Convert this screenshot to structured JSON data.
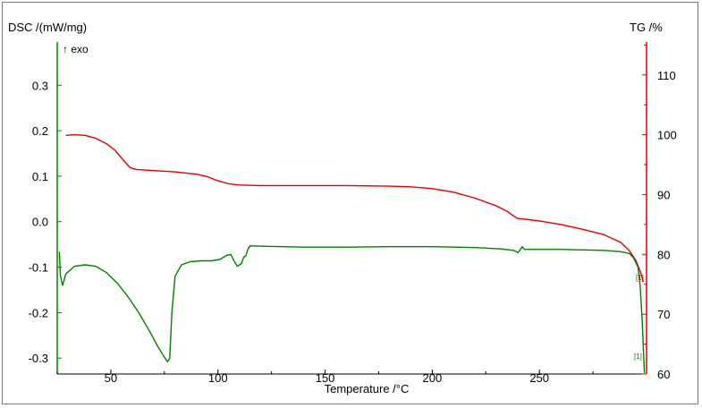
{
  "chart_data": {
    "type": "line",
    "xlabel": "Temperature /°C",
    "xlim": [
      25,
      300
    ],
    "xticks": [
      50,
      100,
      150,
      200,
      250
    ],
    "y_left": {
      "label": "DSC /(mW/mg)",
      "lim": [
        -0.335,
        0.395
      ],
      "ticks": [
        -0.3,
        -0.2,
        -0.1,
        0.0,
        0.1,
        0.2,
        0.3
      ],
      "tick_labels": [
        "-0.3",
        "-0.2",
        "-0.1",
        "0.0",
        "0.1",
        "0.2",
        "0.3"
      ],
      "color": "#008000"
    },
    "y_right": {
      "label": "TG /%",
      "lim": [
        60,
        115.5
      ],
      "ticks": [
        60,
        70,
        80,
        90,
        100,
        110
      ],
      "tick_labels": [
        "60",
        "70",
        "80",
        "90",
        "100",
        "110"
      ],
      "color": "#e00000"
    },
    "annotations": {
      "exo": "↑ exo",
      "marker_dsc": "[1]",
      "marker_tg": "[1]"
    },
    "series": [
      {
        "axis": "right",
        "color": "#e00000",
        "points": [
          [
            29,
            99.9
          ],
          [
            33,
            100
          ],
          [
            38,
            99.9
          ],
          [
            43,
            99.4
          ],
          [
            48,
            98.5
          ],
          [
            52,
            97.4
          ],
          [
            56,
            95.7
          ],
          [
            59,
            94.5
          ],
          [
            62,
            94.2
          ],
          [
            70,
            94.0
          ],
          [
            80,
            93.8
          ],
          [
            90,
            93.4
          ],
          [
            95,
            93.0
          ],
          [
            100,
            92.3
          ],
          [
            105,
            91.8
          ],
          [
            110,
            91.6
          ],
          [
            120,
            91.5
          ],
          [
            140,
            91.5
          ],
          [
            160,
            91.5
          ],
          [
            180,
            91.4
          ],
          [
            190,
            91.3
          ],
          [
            200,
            91.0
          ],
          [
            210,
            90.4
          ],
          [
            220,
            89.4
          ],
          [
            230,
            88.1
          ],
          [
            235,
            87.2
          ],
          [
            238,
            86.4
          ],
          [
            240,
            86.0
          ],
          [
            245,
            85.8
          ],
          [
            250,
            85.6
          ],
          [
            260,
            85.0
          ],
          [
            270,
            84.2
          ],
          [
            280,
            83.3
          ],
          [
            288,
            82.0
          ],
          [
            292,
            80.6
          ],
          [
            295,
            79.0
          ],
          [
            297,
            77.2
          ],
          [
            298.5,
            75.4
          ]
        ]
      },
      {
        "axis": "left",
        "color": "#008000",
        "points": [
          [
            26,
            -0.066
          ],
          [
            26.5,
            -0.12
          ],
          [
            27.5,
            -0.14
          ],
          [
            29,
            -0.115
          ],
          [
            33,
            -0.098
          ],
          [
            38,
            -0.095
          ],
          [
            43,
            -0.098
          ],
          [
            48,
            -0.112
          ],
          [
            53,
            -0.135
          ],
          [
            58,
            -0.165
          ],
          [
            63,
            -0.2
          ],
          [
            68,
            -0.24
          ],
          [
            72,
            -0.275
          ],
          [
            75,
            -0.298
          ],
          [
            76.5,
            -0.308
          ],
          [
            77.5,
            -0.3
          ],
          [
            78.5,
            -0.2
          ],
          [
            80,
            -0.12
          ],
          [
            83,
            -0.095
          ],
          [
            87,
            -0.088
          ],
          [
            92,
            -0.086
          ],
          [
            97,
            -0.086
          ],
          [
            101,
            -0.083
          ],
          [
            104,
            -0.074
          ],
          [
            106,
            -0.072
          ],
          [
            107.5,
            -0.086
          ],
          [
            109,
            -0.098
          ],
          [
            111,
            -0.092
          ],
          [
            112,
            -0.078
          ],
          [
            113,
            -0.075
          ],
          [
            114,
            -0.06
          ],
          [
            115,
            -0.053
          ],
          [
            120,
            -0.054
          ],
          [
            140,
            -0.056
          ],
          [
            160,
            -0.056
          ],
          [
            180,
            -0.055
          ],
          [
            200,
            -0.055
          ],
          [
            220,
            -0.057
          ],
          [
            232,
            -0.06
          ],
          [
            238,
            -0.063
          ],
          [
            240,
            -0.068
          ],
          [
            241,
            -0.062
          ],
          [
            242,
            -0.055
          ],
          [
            243,
            -0.061
          ],
          [
            250,
            -0.061
          ],
          [
            260,
            -0.061
          ],
          [
            270,
            -0.062
          ],
          [
            280,
            -0.063
          ],
          [
            288,
            -0.066
          ],
          [
            292,
            -0.07
          ],
          [
            294,
            -0.08
          ],
          [
            296,
            -0.1
          ],
          [
            297,
            -0.14
          ],
          [
            298,
            -0.22
          ],
          [
            298.7,
            -0.3
          ],
          [
            299,
            -0.333
          ]
        ]
      }
    ]
  }
}
